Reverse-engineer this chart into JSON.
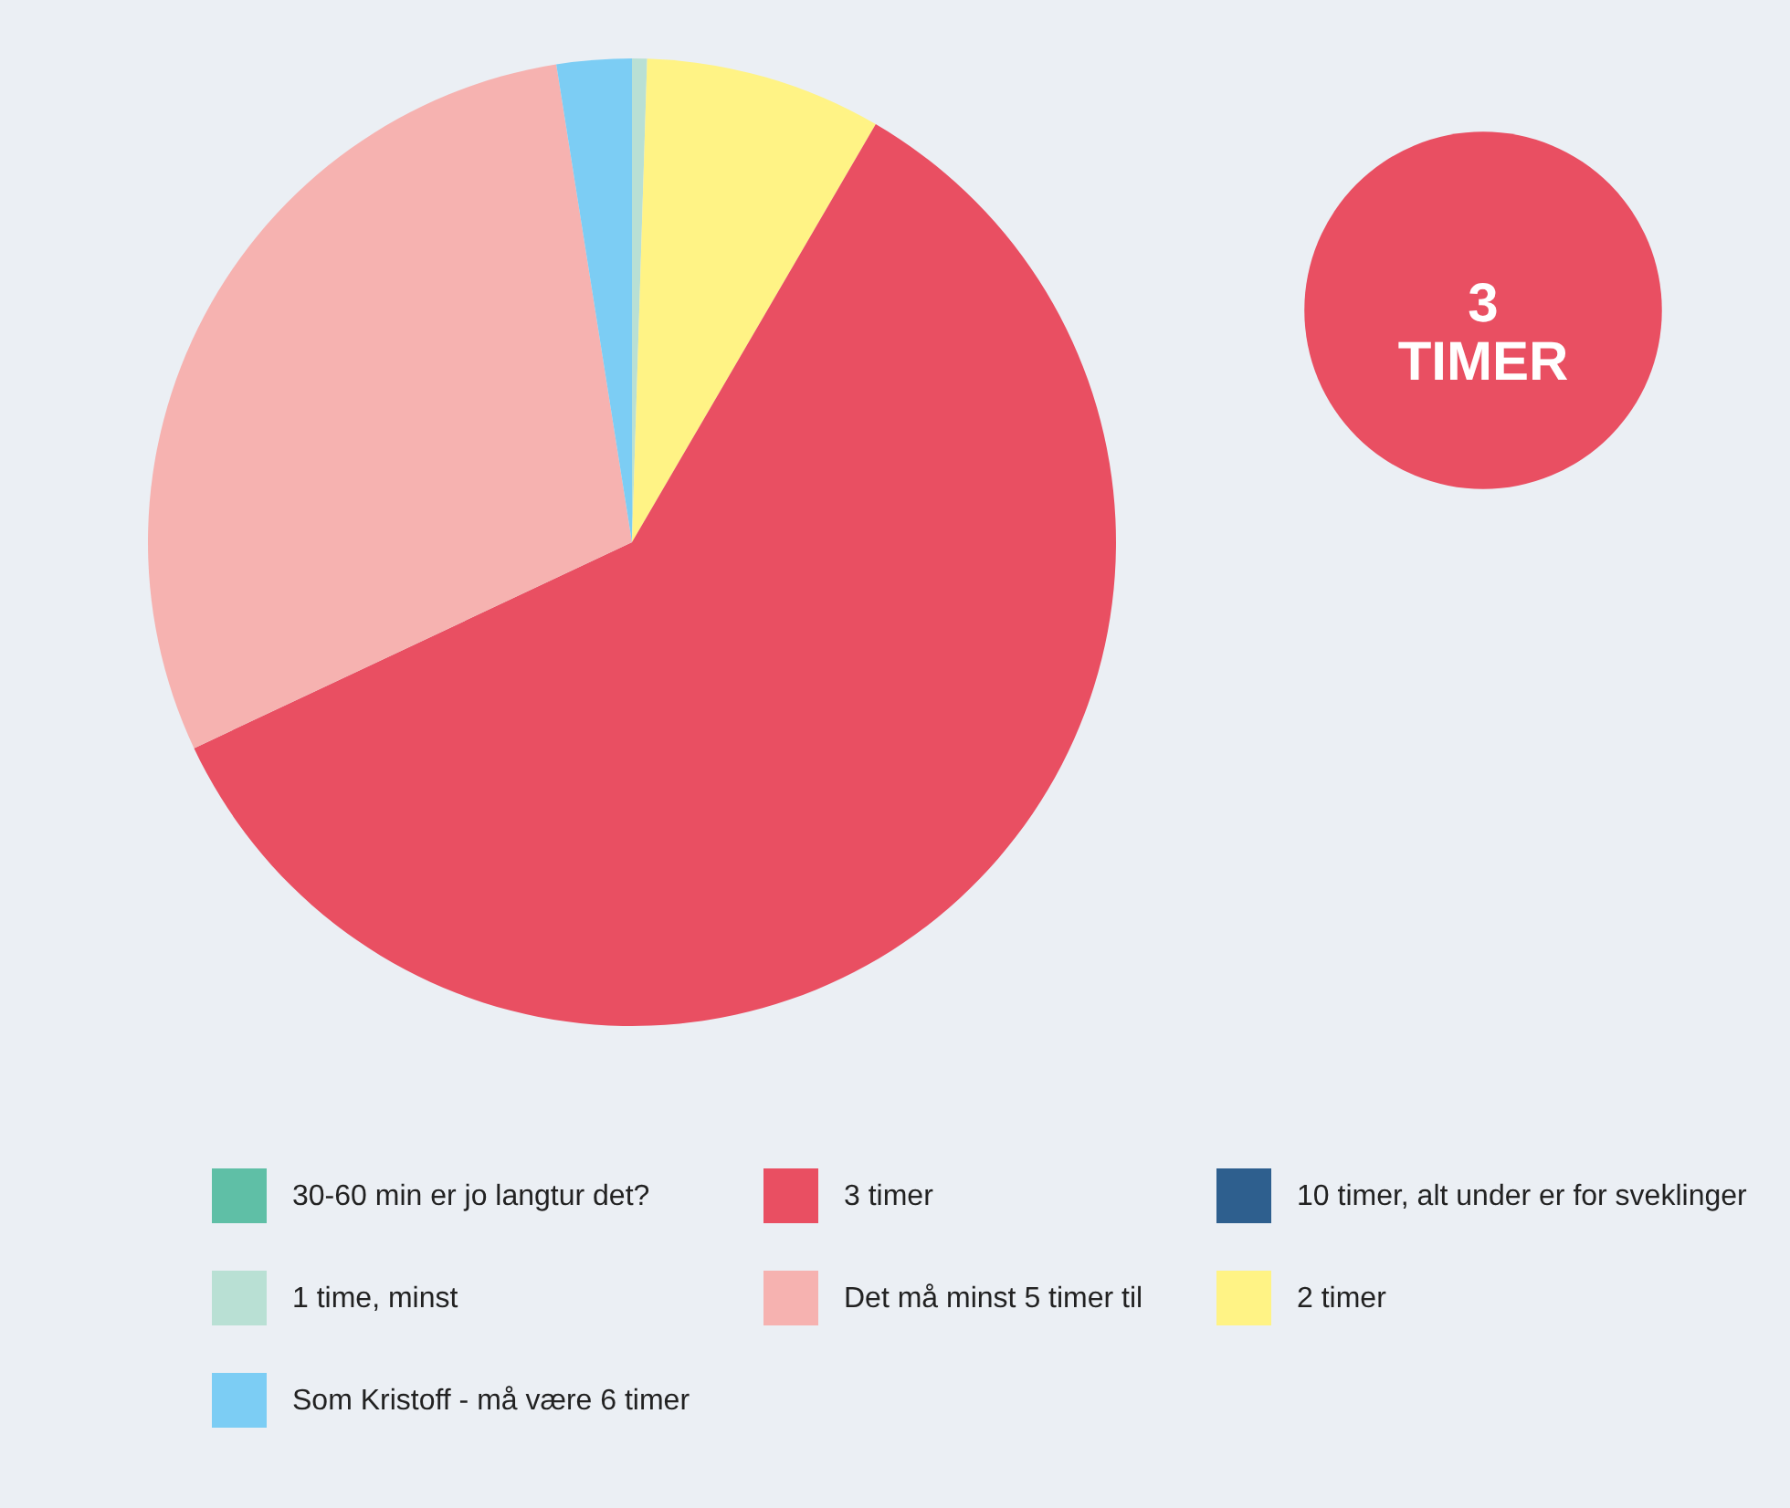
{
  "chart_data": {
    "type": "pie",
    "categories": [
      "30-60 min er jo langtur det?",
      "1 time, minst",
      "2 timer",
      "3 timer",
      "Det må minst 5 timer til",
      "Som Kristoff - må være 6 timer",
      "10 timer, alt under er for sveklinger"
    ],
    "values": [
      0,
      0.5,
      7.9,
      59.6,
      29.5,
      2.5,
      0
    ],
    "colors": [
      "#5fbfa6",
      "#b9e0d4",
      "#fff385",
      "#e94f62",
      "#f6b2b0",
      "#7ccdf4",
      "#2e5f8e"
    ],
    "annotations": [
      "3\nTIMER"
    ],
    "legend": "bottom"
  }
}
